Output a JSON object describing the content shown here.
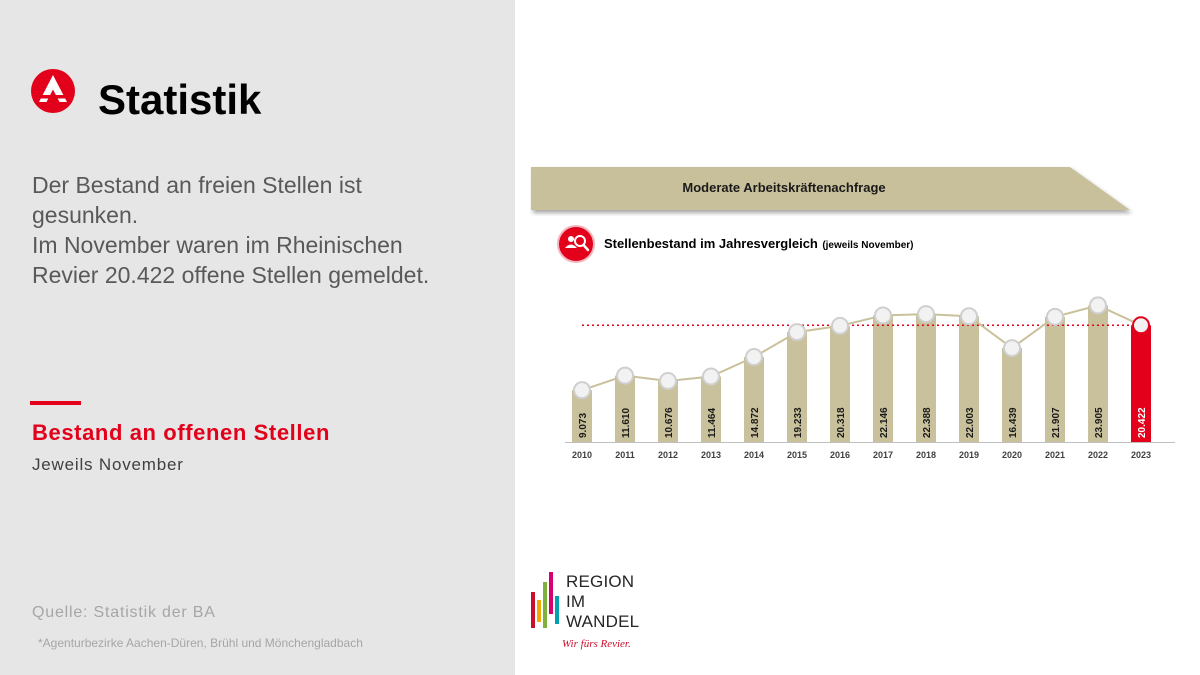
{
  "left": {
    "title": "Statistik",
    "summary_lines": [
      "Der Bestand an freien Stellen ist",
      "gesunken.",
      "Im November waren im Rheinischen",
      "Revier 20.422 offene Stellen gemeldet."
    ],
    "section_title": "Bestand an offenen Stellen",
    "section_subtitle": "Jeweils November",
    "source": "Quelle: Statistik der BA",
    "footnote": "*Agenturbezirke Aachen-Düren, Brühl und Mönchengladbach"
  },
  "banner": {
    "text": "Moderate Arbeitskräftenachfrage"
  },
  "chart_header": {
    "title": "Stellenbestand im Jahresvergleich",
    "title_note": "(jeweils November)"
  },
  "region_logo": {
    "line1": "REGION",
    "line2": "IM",
    "line3": "WANDEL",
    "tagline": "Wir fürs Revier."
  },
  "colors": {
    "accent_red": "#e2001a",
    "bar_khaki": "#c9c19b",
    "banner_khaki": "#c8c09a",
    "panel_gray": "#e6e6e6"
  },
  "chart_data": {
    "type": "bar",
    "title": "Stellenbestand im Jahresvergleich (jeweils November)",
    "categories": [
      "2010",
      "2011",
      "2012",
      "2013",
      "2014",
      "2015",
      "2016",
      "2017",
      "2018",
      "2019",
      "2020",
      "2021",
      "2022",
      "2023"
    ],
    "values": [
      9073,
      11610,
      10676,
      11464,
      14872,
      19233,
      20318,
      22146,
      22388,
      22003,
      16439,
      21907,
      23905,
      20422
    ],
    "value_labels": [
      "9.073",
      "11.610",
      "10.676",
      "11.464",
      "14.872",
      "19.233",
      "20.318",
      "22.146",
      "22.388",
      "22.003",
      "16.439",
      "21.907",
      "23.905",
      "20.422"
    ],
    "highlight_index": 13,
    "reference_line": 20422,
    "ylim": [
      0,
      24500
    ],
    "line_overlay": true,
    "grid": false,
    "legend": "none"
  }
}
